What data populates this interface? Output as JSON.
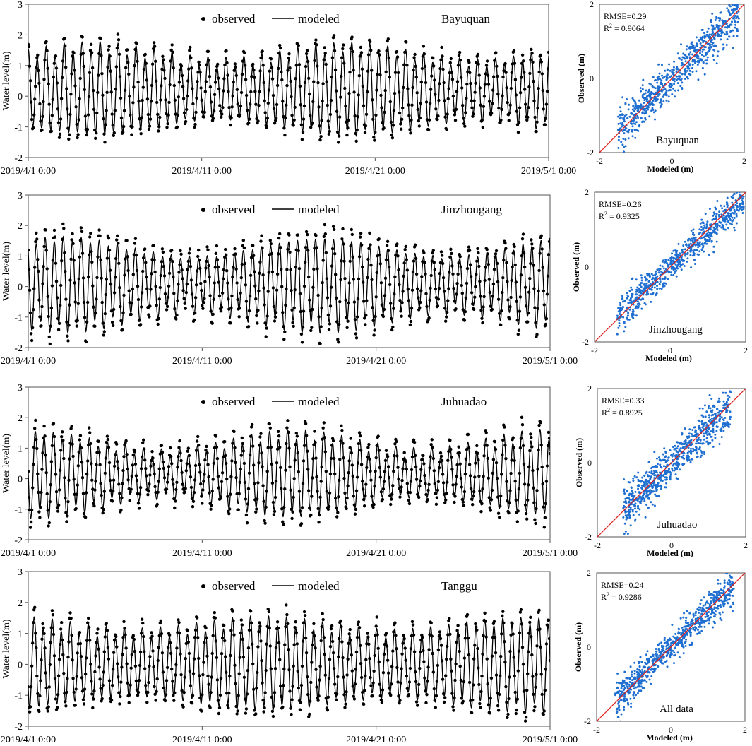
{
  "chart_data": [
    {
      "type": "line",
      "station": "Bayuquan",
      "title": "Bayuquan",
      "ylabel": "Water level(m)",
      "xlabel": "",
      "ylim": [
        -2,
        3
      ],
      "yticks": [
        "-2",
        "-1",
        "0",
        "1",
        "2",
        "3"
      ],
      "xticks": [
        "2019/4/1 0:00",
        "2019/4/11 0:00",
        "2019/4/21 0:00",
        "2019/5/1 0:00"
      ],
      "xlim_days": [
        0,
        30
      ],
      "series": [
        {
          "name": "observed",
          "style": "dots"
        },
        {
          "name": "modeled",
          "style": "line"
        }
      ],
      "legend": {
        "observed": "observed",
        "modeled": "modeled"
      },
      "tide_model": {
        "cycles_per_day": 1.93,
        "mean": 0.2,
        "amp_base": 1.15,
        "amp_var": 0.25,
        "obs_amp_extra": 0.12
      }
    },
    {
      "type": "line",
      "station": "Jinzhougang",
      "title": "Jinzhougang",
      "ylabel": "Water level(m)",
      "xlabel": "",
      "ylim": [
        -2,
        3
      ],
      "yticks": [
        "-2",
        "-1",
        "0",
        "1",
        "2",
        "3"
      ],
      "xticks": [
        "2019/4/1 0:00",
        "2019/4/11 0:00",
        "2019/4/21 0:00",
        "2019/5/1 0:00"
      ],
      "xlim_days": [
        0,
        30
      ],
      "series": [
        {
          "name": "observed",
          "style": "dots"
        },
        {
          "name": "modeled",
          "style": "line"
        }
      ],
      "legend": {
        "observed": "observed",
        "modeled": "modeled"
      },
      "tide_model": {
        "cycles_per_day": 1.93,
        "mean": 0.1,
        "amp_base": 1.15,
        "amp_var": 0.3,
        "obs_amp_extra": 0.2
      }
    },
    {
      "type": "line",
      "station": "Juhuadao",
      "title": "Juhuadao",
      "ylabel": "Water level(m)",
      "xlabel": "",
      "ylim": [
        -2,
        3
      ],
      "yticks": [
        "-2",
        "-1",
        "0",
        "1",
        "2",
        "3"
      ],
      "xticks": [
        "2019/4/1 0:00",
        "2019/4/11 0:00",
        "2019/4/21 0:00",
        "2019/5/1 0:00"
      ],
      "xlim_days": [
        0,
        30
      ],
      "series": [
        {
          "name": "observed",
          "style": "dots"
        },
        {
          "name": "modeled",
          "style": "line"
        }
      ],
      "legend": {
        "observed": "observed",
        "modeled": "modeled"
      },
      "tide_model": {
        "cycles_per_day": 1.93,
        "mean": 0.15,
        "amp_base": 1.0,
        "amp_var": 0.3,
        "obs_amp_extra": 0.2
      }
    },
    {
      "type": "line",
      "station": "Tanggu",
      "title": "Tanggu",
      "ylabel": "Water level(m)",
      "xlabel": "",
      "ylim": [
        -2,
        3
      ],
      "yticks": [
        "-2",
        "-1",
        "0",
        "1",
        "2",
        "3"
      ],
      "xticks": [
        "2019/4/1 0:00",
        "2019/4/11 0:00",
        "2019/4/21 0:00",
        "2019/5/1 0:00"
      ],
      "xlim_days": [
        0,
        30
      ],
      "series": [
        {
          "name": "observed",
          "style": "dots"
        },
        {
          "name": "modeled",
          "style": "line"
        }
      ],
      "legend": {
        "observed": "observed",
        "modeled": "modeled"
      },
      "tide_model": {
        "cycles_per_day": 1.93,
        "mean": 0.0,
        "amp_base": 1.2,
        "amp_var": 0.2,
        "obs_amp_extra": 0.15
      }
    },
    {
      "type": "scatter",
      "title": "Bayuquan",
      "xlabel": "Modeled (m)",
      "ylabel": "Observed (m)",
      "xlim": [
        -2,
        2
      ],
      "ylim": [
        -2,
        2
      ],
      "xticks": [
        "-2",
        "0",
        "2"
      ],
      "yticks": [
        "-2",
        "0",
        "2"
      ],
      "rmse": "RMSE=0.29",
      "r2_label": "R",
      "r2_sup": "2",
      "r2_value": " = 0.9064",
      "point_color": "#1f6fd1",
      "line_color": "#e0201b",
      "cloud": {
        "xmin": -1.5,
        "xmax": 1.85,
        "spread": 0.29,
        "n": 700
      }
    },
    {
      "type": "scatter",
      "title": "Jinzhougang",
      "xlabel": "Modeled (m)",
      "ylabel": "Observed (m)",
      "xlim": [
        -2,
        2
      ],
      "ylim": [
        -2,
        2
      ],
      "xticks": [
        "-2",
        "0",
        "2"
      ],
      "yticks": [
        "-2",
        "0",
        "2"
      ],
      "rmse": "RMSE=0.26",
      "r2_label": "R",
      "r2_sup": "2",
      "r2_value": " = 0.9325",
      "point_color": "#1f6fd1",
      "line_color": "#e0201b",
      "cloud": {
        "xmin": -1.4,
        "xmax": 1.95,
        "spread": 0.22,
        "n": 700
      }
    },
    {
      "type": "scatter",
      "title": "Juhuadao",
      "xlabel": "Modeled (m)",
      "ylabel": "Observed (m)",
      "xlim": [
        -2,
        2
      ],
      "ylim": [
        -2,
        2
      ],
      "xticks": [
        "-2",
        "0",
        "2"
      ],
      "yticks": [
        "-2",
        "0",
        "2"
      ],
      "rmse": "RMSE=0.33",
      "r2_label": "R",
      "r2_sup": "2",
      "r2_value": " = 0.8925",
      "point_color": "#1f6fd1",
      "line_color": "#e0201b",
      "cloud": {
        "xmin": -1.3,
        "xmax": 1.6,
        "spread": 0.3,
        "n": 700
      }
    },
    {
      "type": "scatter",
      "title": "All data",
      "xlabel": "Modeled (m)",
      "ylabel": "Observed (m)",
      "xlim": [
        -2,
        2
      ],
      "ylim": [
        -2,
        2
      ],
      "xticks": [
        "-2",
        "0",
        "2"
      ],
      "yticks": [
        "-2",
        "0",
        "2"
      ],
      "rmse": "RMSE=0.24",
      "r2_label": "R",
      "r2_sup": "2",
      "r2_value": " = 0.9286",
      "point_color": "#1f6fd1",
      "line_color": "#e0201b",
      "cloud": {
        "xmin": -1.5,
        "xmax": 1.7,
        "spread": 0.22,
        "n": 750
      }
    }
  ]
}
